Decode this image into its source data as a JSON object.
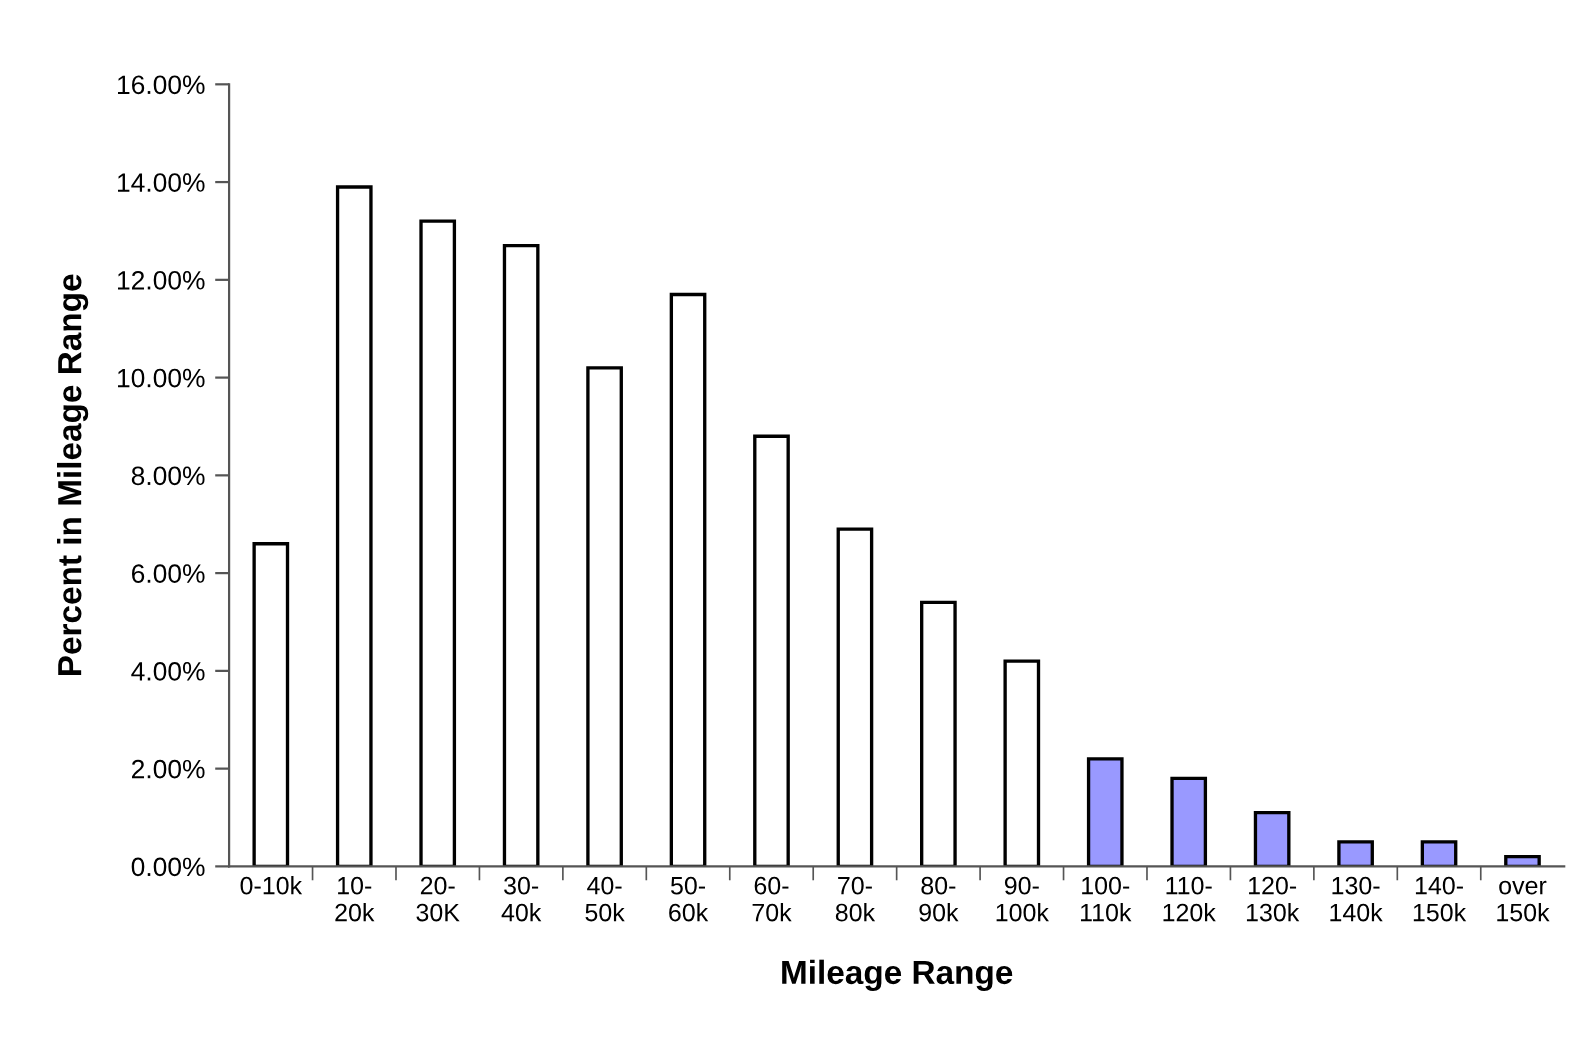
{
  "chart_data": {
    "type": "bar",
    "xlabel": "Mileage Range",
    "ylabel": "Percent in Mileage Range",
    "categories": [
      "0-10k",
      "10-\n20k",
      "20-\n30K",
      "30-\n40k",
      "40-\n50k",
      "50-\n60k",
      "60-\n70k",
      "70-\n80k",
      "80-\n90k",
      "90-\n100k",
      "100-\n110k",
      "110-\n120k",
      "120-\n130k",
      "130-\n140k",
      "140-\n150k",
      "over\n150k"
    ],
    "values": [
      6.6,
      13.9,
      13.2,
      12.7,
      10.2,
      11.7,
      8.8,
      6.9,
      5.4,
      4.2,
      2.2,
      1.8,
      1.1,
      0.5,
      0.5,
      0.2
    ],
    "colors": [
      "#ffffff",
      "#ffffff",
      "#ffffff",
      "#ffffff",
      "#ffffff",
      "#ffffff",
      "#ffffff",
      "#ffffff",
      "#ffffff",
      "#ffffff",
      "#9999ff",
      "#9999ff",
      "#9999ff",
      "#9999ff",
      "#9999ff",
      "#9999ff"
    ],
    "ylim": [
      0,
      16
    ],
    "yticks": [
      {
        "value": 0,
        "label": "0.00%"
      },
      {
        "value": 2,
        "label": "2.00%"
      },
      {
        "value": 4,
        "label": "4.00%"
      },
      {
        "value": 6,
        "label": "6.00%"
      },
      {
        "value": 8,
        "label": "8.00%"
      },
      {
        "value": 10,
        "label": "10.00%"
      },
      {
        "value": 12,
        "label": "12.00%"
      },
      {
        "value": 14,
        "label": "14.00%"
      },
      {
        "value": 16,
        "label": "16.00%"
      }
    ],
    "grid": false
  }
}
